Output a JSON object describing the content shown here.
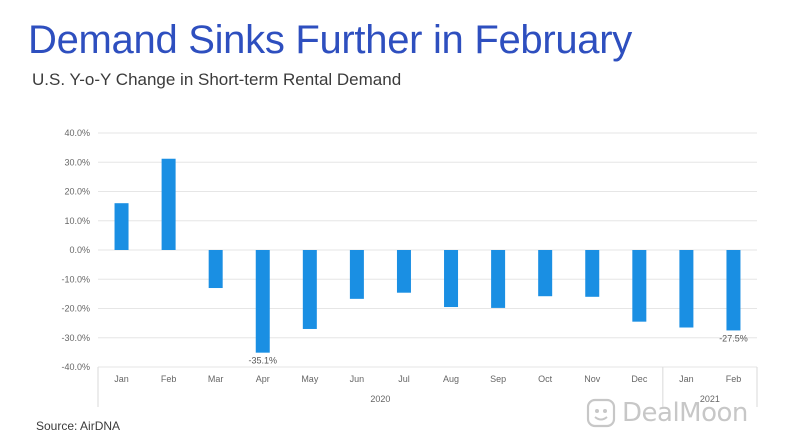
{
  "title": "Demand Sinks Further in February",
  "subtitle": "U.S. Y-o-Y Change in Short-term Rental Demand",
  "source": "Source: AirDNA",
  "watermark": "DealMoon",
  "colors": {
    "bar": "#1a8fe3",
    "title": "#2e4fbf",
    "grid": "#e6e6e6"
  },
  "chart_data": {
    "type": "bar",
    "title": "Demand Sinks Further in February",
    "subtitle": "U.S. Y-o-Y Change in Short-term Rental Demand",
    "categories": [
      "Jan",
      "Feb",
      "Mar",
      "Apr",
      "May",
      "Jun",
      "Jul",
      "Aug",
      "Sep",
      "Oct",
      "Nov",
      "Dec",
      "Jan",
      "Feb"
    ],
    "groups": [
      {
        "label": "2020",
        "categories": 12
      },
      {
        "label": "2021",
        "categories": 2
      }
    ],
    "values": [
      16.0,
      31.2,
      -13.0,
      -35.1,
      -27.0,
      -16.7,
      -14.6,
      -19.5,
      -19.8,
      -15.8,
      -16.0,
      -24.5,
      -26.5,
      -27.5
    ],
    "data_labels": [
      {
        "index": 3,
        "text": "-35.1%"
      },
      {
        "index": 13,
        "text": "-27.5%"
      }
    ],
    "ylim": [
      -40,
      40
    ],
    "yticks": [
      40,
      30,
      20,
      10,
      0,
      -10,
      -20,
      -30,
      -40
    ],
    "ytick_labels": [
      "40.0%",
      "30.0%",
      "20.0%",
      "10.0%",
      "0.0%",
      "-10.0%",
      "-20.0%",
      "-30.0%",
      "-40.0%"
    ],
    "grid": true,
    "xlabel": "",
    "ylabel": ""
  }
}
